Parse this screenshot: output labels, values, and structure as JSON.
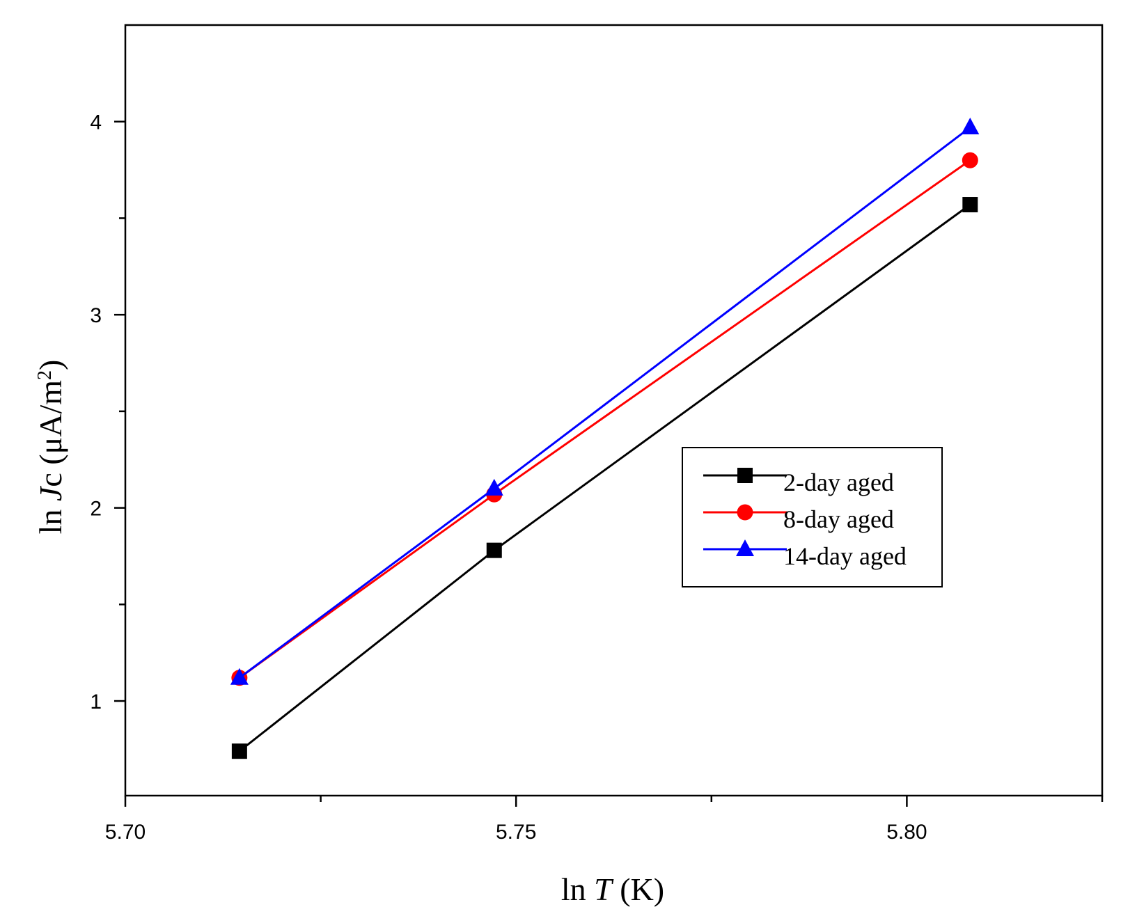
{
  "chart_data": {
    "type": "line",
    "title": "",
    "xlabel": {
      "prefix": "ln ",
      "var": "T",
      "suffix": " (K)"
    },
    "ylabel": {
      "prefix": "ln ",
      "var": "J",
      "rest": "c (μA/m",
      "sup": "2",
      "close": ")"
    },
    "xlim": [
      5.7,
      5.825
    ],
    "ylim": [
      0.51,
      4.5
    ],
    "x_ticks": [
      5.7,
      5.75,
      5.8
    ],
    "x_tick_labels": [
      "5.70",
      "5.75",
      "5.80"
    ],
    "x_minor_ticks": [
      5.725,
      5.775,
      5.825
    ],
    "y_ticks": [
      1,
      2,
      3,
      4
    ],
    "y_tick_labels": [
      "1",
      "2",
      "3",
      "4"
    ],
    "y_minor_ticks": [
      1.5,
      2.5,
      3.5
    ],
    "x": [
      5.7146,
      5.7472,
      5.8081
    ],
    "series": [
      {
        "name": "2-day aged",
        "values": [
          0.74,
          1.78,
          3.57
        ],
        "color": "#000000",
        "marker": "square"
      },
      {
        "name": "8-day aged",
        "values": [
          1.12,
          2.07,
          3.8
        ],
        "color": "#ff0000",
        "marker": "circle"
      },
      {
        "name": "14-day aged",
        "values": [
          1.12,
          2.1,
          3.97
        ],
        "color": "#0000ff",
        "marker": "triangle"
      }
    ],
    "legend_position": "center-right",
    "grid": false
  }
}
